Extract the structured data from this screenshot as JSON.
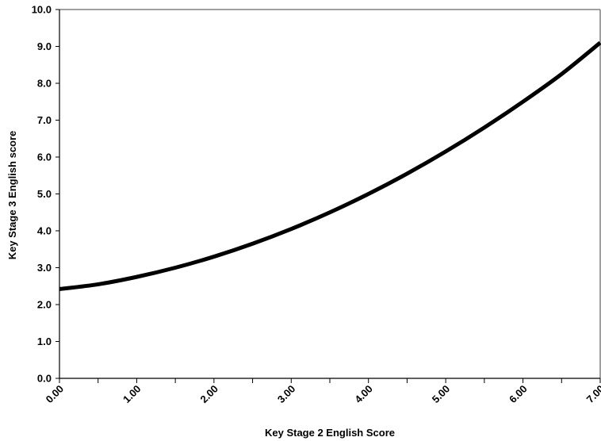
{
  "chart_data": {
    "type": "line",
    "title": "",
    "xlabel": "Key Stage 2 English Score",
    "ylabel": "Key Stage 3 English score",
    "xlim": [
      0,
      7
    ],
    "ylim": [
      0,
      10
    ],
    "x_ticks": [
      "0.00",
      "1.00",
      "2.00",
      "3.00",
      "4.00",
      "5.00",
      "6.00",
      "7.00"
    ],
    "y_ticks": [
      "0.0",
      "1.0",
      "2.0",
      "3.0",
      "4.0",
      "5.0",
      "6.0",
      "7.0",
      "8.0",
      "9.0",
      "10.0"
    ],
    "grid": false,
    "legend": "none",
    "series": [
      {
        "line_color": "#000000",
        "x": [
          0,
          0.5,
          1,
          1.5,
          2,
          2.5,
          3,
          3.5,
          4,
          4.5,
          5,
          5.5,
          6,
          6.5,
          7
        ],
        "y": [
          2.42,
          2.55,
          2.75,
          3.0,
          3.3,
          3.65,
          4.05,
          4.5,
          5.0,
          5.55,
          6.15,
          6.8,
          7.5,
          8.25,
          9.1
        ]
      }
    ]
  }
}
